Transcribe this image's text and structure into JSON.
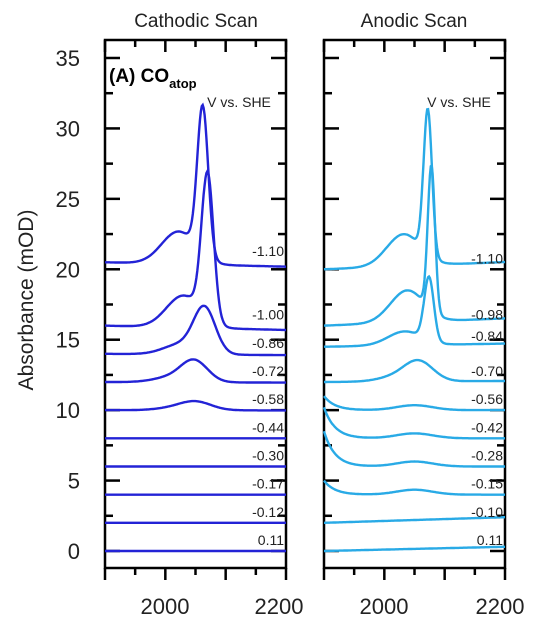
{
  "chart_data": {
    "type": "line",
    "panel_label": "(A) CO",
    "panel_label_sub": "atop",
    "ylabel": "Absorbance (mOD)",
    "ylim": [
      -1,
      35
    ],
    "yticks": [
      0,
      5,
      10,
      15,
      20,
      25,
      30,
      35
    ],
    "xlim": [
      1900,
      2200
    ],
    "xtick_labels": [
      "2000",
      "2200"
    ],
    "panels": [
      {
        "title": "Cathodic Scan",
        "potential_label": "V vs. SHE",
        "color": "#2323d6",
        "series": [
          {
            "label": "0.11",
            "offset": 0.0,
            "shape": "flat",
            "a": 0.0
          },
          {
            "label": "-0.12",
            "offset": 2.0,
            "shape": "flat",
            "a": 0.0
          },
          {
            "label": "-0.17",
            "offset": 4.0,
            "shape": "flat",
            "a": 0.0
          },
          {
            "label": "-0.30",
            "offset": 6.0,
            "shape": "flat",
            "a": 0.0
          },
          {
            "label": "-0.44",
            "offset": 8.0,
            "shape": "flat",
            "a": 0.0
          },
          {
            "label": "-0.58",
            "offset": 10.0,
            "shape": "peak",
            "center": 2050,
            "width": 26,
            "a": 0.6
          },
          {
            "label": "-0.72",
            "offset": 12.0,
            "shape": "peak",
            "center": 2048,
            "width": 22,
            "a": 1.5
          },
          {
            "label": "-0.86",
            "offset": 14.0,
            "shape": "peak",
            "center": 2065,
            "width": 18,
            "a": 3.2
          },
          {
            "label": "-1.00",
            "offset": 16.0,
            "shape": "peak",
            "center": 2070,
            "width": 10,
            "a": 10.3
          },
          {
            "label": "-1.10",
            "offset": 20.5,
            "shape": "peak",
            "center": 2062,
            "width": 9,
            "a": 10.5
          }
        ]
      },
      {
        "title": "Anodic Scan",
        "potential_label": "V vs. SHE",
        "color": "#29aae6",
        "series": [
          {
            "label": "0.11",
            "offset": 0.0,
            "shape": "flat",
            "a": 0.3
          },
          {
            "label": "-0.10",
            "offset": 2.0,
            "shape": "flat",
            "a": 0.4
          },
          {
            "label": "-0.15",
            "offset": 4.0,
            "shape": "rise",
            "a": 1.0
          },
          {
            "label": "-0.28",
            "offset": 6.0,
            "shape": "rise",
            "a": 2.5
          },
          {
            "label": "-0.42",
            "offset": 8.0,
            "shape": "rise",
            "a": 2.2
          },
          {
            "label": "-0.56",
            "offset": 10.0,
            "shape": "rise",
            "a": 1.0
          },
          {
            "label": "-0.70",
            "offset": 12.0,
            "shape": "peak",
            "center": 2057,
            "width": 24,
            "a": 1.4
          },
          {
            "label": "-0.84",
            "offset": 14.5,
            "shape": "peak",
            "center": 2074,
            "width": 8,
            "a": 4.5
          },
          {
            "label": "-0.98",
            "offset": 16.0,
            "shape": "peak",
            "center": 2078,
            "width": 6,
            "a": 10.3
          },
          {
            "label": "-1.10",
            "offset": 20.0,
            "shape": "peak",
            "center": 2072,
            "width": 7,
            "a": 10.3
          }
        ]
      }
    ]
  }
}
